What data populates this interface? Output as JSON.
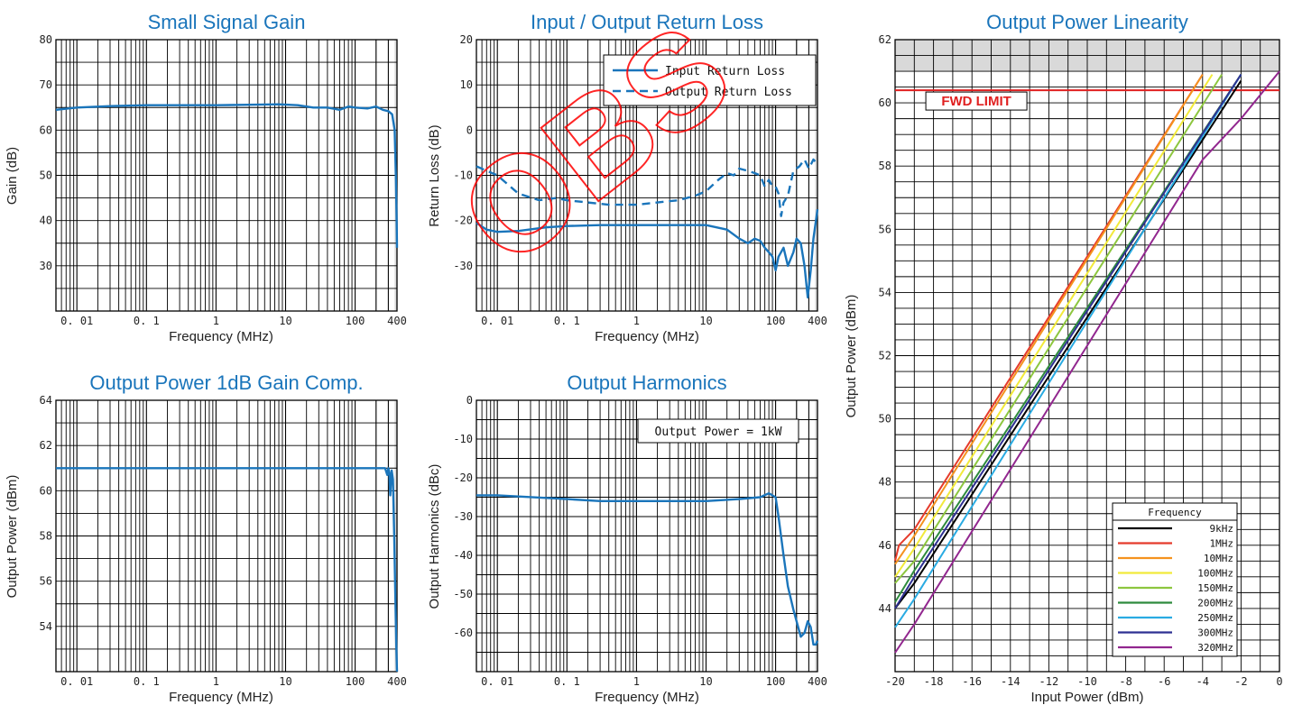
{
  "colors": {
    "accent": "#1a75bb",
    "limit": "#e02020",
    "shade": "#d9d9d9"
  },
  "watermark": {
    "text": "OBS"
  },
  "chart_data": [
    {
      "type": "line",
      "title": "Small Signal Gain",
      "xlabel": "Frequency (MHz)",
      "ylabel": "Gain (dB)",
      "xscale": "log",
      "xlim": [
        0.005,
        400
      ],
      "ylim": [
        20,
        80
      ],
      "xticks": [
        0.01,
        0.1,
        1,
        10,
        100,
        400
      ],
      "xtick_labels": [
        "0. 01",
        "0. 1",
        "1",
        "10",
        "100",
        "400"
      ],
      "yticks": [
        30,
        40,
        50,
        60,
        70,
        80
      ],
      "grid": true,
      "series": [
        {
          "style": "solid",
          "color": "#1a75bb",
          "x": [
            0.005,
            0.01,
            0.03,
            0.1,
            0.3,
            1,
            3,
            8,
            15,
            25,
            40,
            60,
            80,
            100,
            150,
            200,
            250,
            300,
            340,
            370,
            385,
            395,
            400
          ],
          "y": [
            64.5,
            65.0,
            65.3,
            65.5,
            65.5,
            65.5,
            65.6,
            65.7,
            65.5,
            65.0,
            65.0,
            64.5,
            65.2,
            65.0,
            64.8,
            65.2,
            64.5,
            64.2,
            63.5,
            60,
            50,
            40,
            34
          ]
        }
      ]
    },
    {
      "type": "line",
      "title": "Input / Output Return Loss",
      "xlabel": "Frequency (MHz)",
      "ylabel": "Return Loss (dB)",
      "xscale": "log",
      "xlim": [
        0.005,
        400
      ],
      "ylim": [
        -40,
        20
      ],
      "xticks": [
        0.01,
        0.1,
        1,
        10,
        100,
        400
      ],
      "xtick_labels": [
        "0. 01",
        "0. 1",
        "1",
        "10",
        "100",
        "400"
      ],
      "yticks": [
        -30,
        -20,
        -10,
        0,
        10,
        20
      ],
      "ytick_labels": [
        "-30",
        "-20",
        "-10",
        "0",
        "10",
        "20"
      ],
      "grid": true,
      "legend": {
        "position": "top-right"
      },
      "series": [
        {
          "name": "Input Return Loss",
          "style": "solid",
          "color": "#1a75bb",
          "x": [
            0.005,
            0.007,
            0.01,
            0.02,
            0.05,
            0.1,
            0.3,
            1,
            3,
            10,
            20,
            30,
            40,
            50,
            60,
            70,
            80,
            90,
            100,
            110,
            130,
            150,
            180,
            200,
            230,
            260,
            290,
            320,
            350,
            380,
            400
          ],
          "y": [
            -20.5,
            -22.0,
            -22.5,
            -22.3,
            -21.5,
            -21.2,
            -21.0,
            -21.0,
            -21.0,
            -21.0,
            -22.0,
            -24.0,
            -25.0,
            -24.0,
            -24.5,
            -26.0,
            -27.0,
            -28.0,
            -31.0,
            -28.0,
            -26.0,
            -30.0,
            -27.0,
            -24.0,
            -25.0,
            -30.0,
            -37.0,
            -31.0,
            -24.0,
            -20.0,
            -17.5
          ]
        },
        {
          "name": "Output Return Loss",
          "style": "dashed",
          "color": "#1a75bb",
          "x": [
            0.005,
            0.01,
            0.02,
            0.04,
            0.07,
            0.1,
            0.2,
            0.4,
            0.7,
            1,
            2,
            4,
            7,
            10,
            15,
            20,
            25,
            30,
            40,
            50,
            60,
            70,
            80,
            90,
            100,
            110,
            120,
            130,
            150,
            180,
            220,
            260,
            300,
            350,
            400
          ],
          "y": [
            -8.0,
            -10.0,
            -14.0,
            -15.5,
            -15.0,
            -15.5,
            -16.0,
            -16.5,
            -16.5,
            -16.5,
            -16.0,
            -15.5,
            -14.5,
            -13.5,
            -11.0,
            -9.5,
            -10.0,
            -8.5,
            -9.0,
            -9.5,
            -10.0,
            -12.5,
            -11.0,
            -12.5,
            -12.5,
            -14.0,
            -19.0,
            -16.0,
            -14.5,
            -9.0,
            -8.0,
            -6.5,
            -8.5,
            -6.5,
            -7.5
          ]
        }
      ]
    },
    {
      "type": "line",
      "title": "Output Power 1dB Gain Comp.",
      "xlabel": "Frequency (MHz)",
      "ylabel": "Output Power (dBm)",
      "xscale": "log",
      "xlim": [
        0.005,
        400
      ],
      "ylim": [
        52,
        64
      ],
      "xticks": [
        0.01,
        0.1,
        1,
        10,
        100,
        400
      ],
      "xtick_labels": [
        "0. 01",
        "0. 1",
        "1",
        "10",
        "100",
        "400"
      ],
      "yticks": [
        54,
        56,
        58,
        60,
        62,
        64
      ],
      "grid": true,
      "series": [
        {
          "style": "solid",
          "color": "#1a75bb",
          "x": [
            0.005,
            0.1,
            1,
            10,
            100,
            200,
            270,
            290,
            300,
            310,
            320,
            335,
            350,
            365,
            380,
            392,
            400
          ],
          "y": [
            61.0,
            61.0,
            61.0,
            61.0,
            61.0,
            61.0,
            61.0,
            60.7,
            61.0,
            60.8,
            59.8,
            60.9,
            60.5,
            58.0,
            55.0,
            53.0,
            52.0
          ]
        }
      ]
    },
    {
      "type": "line",
      "title": "Output Harmonics",
      "xlabel": "Frequency (MHz)",
      "ylabel": "Output Harmonics (dBc)",
      "xscale": "log",
      "xlim": [
        0.005,
        400
      ],
      "ylim": [
        -70,
        0
      ],
      "xticks": [
        0.01,
        0.1,
        1,
        10,
        100,
        400
      ],
      "xtick_labels": [
        "0. 01",
        "0. 1",
        "1",
        "10",
        "100",
        "400"
      ],
      "yticks": [
        -60,
        -50,
        -40,
        -30,
        -20,
        -10,
        0
      ],
      "ytick_labels": [
        "-60",
        "-50",
        "-40",
        "-30",
        "-20",
        "-10",
        "0"
      ],
      "grid": true,
      "annotation": "Output Power = 1kW",
      "series": [
        {
          "style": "solid",
          "color": "#1a75bb",
          "x": [
            0.005,
            0.01,
            0.1,
            0.3,
            1,
            3,
            10,
            30,
            60,
            80,
            100,
            110,
            130,
            150,
            180,
            200,
            230,
            260,
            290,
            320,
            350,
            380,
            400
          ],
          "y": [
            -24.5,
            -24.5,
            -25.5,
            -26.0,
            -26.0,
            -26.0,
            -26.0,
            -25.5,
            -25.0,
            -24.0,
            -25.0,
            -30.0,
            -40.0,
            -48.0,
            -54.0,
            -57.0,
            -61.0,
            -60.0,
            -57.0,
            -58.5,
            -63.0,
            -63.0,
            -62.0
          ]
        }
      ]
    },
    {
      "type": "line",
      "title": "Output Power Linearity",
      "xlabel": "Input Power (dBm)",
      "ylabel": "Output Power (dBm)",
      "xlim": [
        -20,
        0
      ],
      "ylim": [
        42,
        62
      ],
      "xticks": [
        -20,
        -18,
        -16,
        -14,
        -12,
        -10,
        -8,
        -6,
        -4,
        -2,
        0
      ],
      "xtick_labels": [
        "-20",
        "-18",
        "-16",
        "-14",
        "-12",
        "-10",
        "-8",
        "-6",
        "-4",
        "-2",
        "0"
      ],
      "yticks": [
        44,
        46,
        48,
        50,
        52,
        54,
        56,
        58,
        60,
        62
      ],
      "grid": true,
      "limit_line": {
        "value": 60.4,
        "label": "FWD LIMIT"
      },
      "shaded_band": [
        61,
        62
      ],
      "legend": {
        "position": "bottom-right",
        "title": "Frequency"
      },
      "series": [
        {
          "name": "9kHz",
          "color": "#000000",
          "x": [
            -20,
            -19,
            -2
          ],
          "y": [
            44.0,
            44.8,
            60.7
          ]
        },
        {
          "name": "1MHz",
          "color": "#e53b2c",
          "x": [
            -20,
            -19.8,
            -19,
            -4
          ],
          "y": [
            45.5,
            46.0,
            46.5,
            60.9
          ]
        },
        {
          "name": "10MHz",
          "color": "#f5921e",
          "x": [
            -20,
            -19,
            -4
          ],
          "y": [
            45.4,
            46.3,
            60.9
          ]
        },
        {
          "name": "100MHz",
          "color": "#f2ea3a",
          "x": [
            -20,
            -19,
            -3.5
          ],
          "y": [
            45.0,
            45.9,
            60.9
          ]
        },
        {
          "name": "150MHz",
          "color": "#8dc63f",
          "x": [
            -20,
            -19,
            -3
          ],
          "y": [
            44.8,
            45.5,
            60.9
          ]
        },
        {
          "name": "200MHz",
          "color": "#2e8b3d",
          "x": [
            -20,
            -19,
            -2
          ],
          "y": [
            44.2,
            45.2,
            60.9
          ]
        },
        {
          "name": "250MHz",
          "color": "#29abe2",
          "x": [
            -20,
            -19,
            -2
          ],
          "y": [
            43.4,
            44.3,
            60.9
          ]
        },
        {
          "name": "300MHz",
          "color": "#2e3192",
          "x": [
            -20,
            -19,
            -2
          ],
          "y": [
            44.0,
            45.0,
            60.9
          ]
        },
        {
          "name": "320MHz",
          "color": "#92278f",
          "x": [
            -20,
            -19,
            -4,
            -2,
            0
          ],
          "y": [
            42.6,
            43.5,
            58.2,
            59.5,
            61.0
          ]
        }
      ]
    }
  ]
}
